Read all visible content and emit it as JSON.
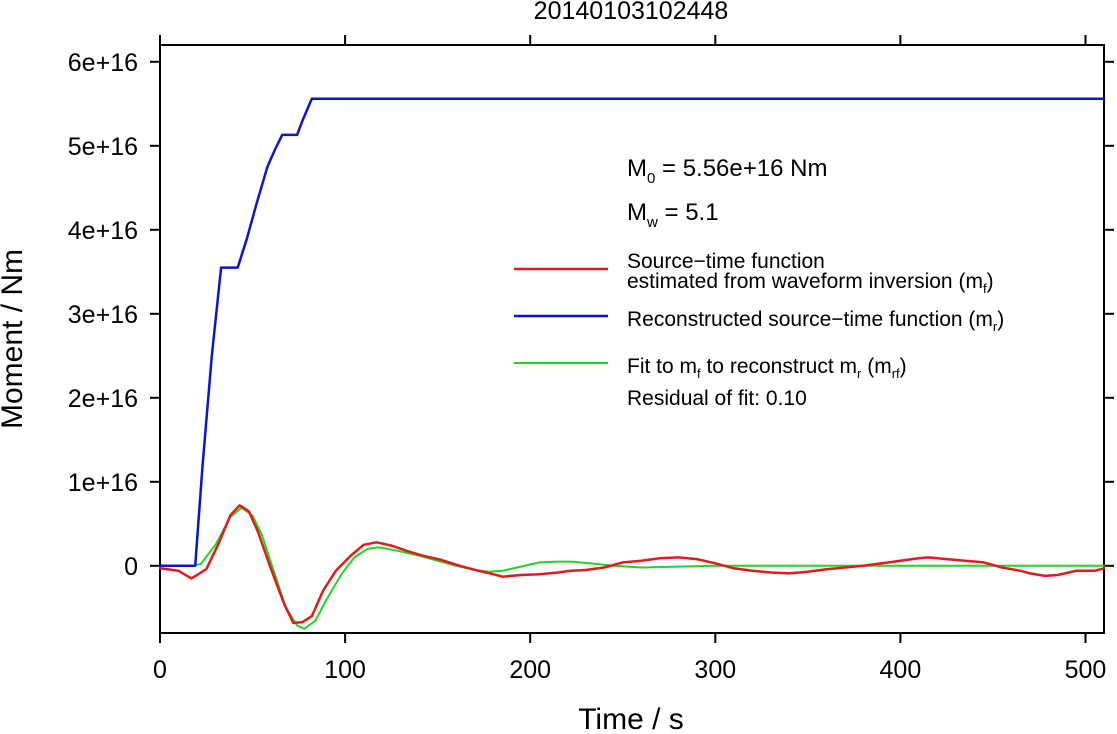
{
  "chart_data": {
    "type": "line",
    "title": "20140103102448",
    "xlabel": "Time / s",
    "ylabel": "Moment / Nm",
    "xlim": [
      0,
      510
    ],
    "ylim": [
      -8000000000000000.0,
      6.2e+16
    ],
    "x_ticks": [
      {
        "value": 0,
        "label": "0"
      },
      {
        "value": 100,
        "label": "100"
      },
      {
        "value": 200,
        "label": "200"
      },
      {
        "value": 300,
        "label": "300"
      },
      {
        "value": 400,
        "label": "400"
      },
      {
        "value": 500,
        "label": "500"
      }
    ],
    "y_ticks": [
      {
        "value": 0,
        "label": "0"
      },
      {
        "value": 1e+16,
        "label": "1e+16"
      },
      {
        "value": 2e+16,
        "label": "2e+16"
      },
      {
        "value": 3e+16,
        "label": "3e+16"
      },
      {
        "value": 4e+16,
        "label": "4e+16"
      },
      {
        "value": 5e+16,
        "label": "5e+16"
      },
      {
        "value": 6e+16,
        "label": "6e+16"
      }
    ],
    "grid": false,
    "series": [
      {
        "key": "mf",
        "color": "#e31a1c",
        "x": [
          0,
          10,
          17,
          25,
          32,
          38,
          43,
          48,
          53,
          60,
          67,
          72,
          77,
          82,
          88,
          95,
          103,
          110,
          117,
          125,
          133,
          142,
          152,
          162,
          172,
          180,
          185,
          195,
          205,
          215,
          222,
          230,
          240,
          250,
          260,
          270,
          280,
          290,
          300,
          310,
          320,
          330,
          340,
          350,
          360,
          370,
          380,
          390,
          400,
          410,
          415,
          425,
          435,
          445,
          455,
          465,
          470,
          478,
          485,
          495,
          505,
          510
        ],
        "y": [
          -300000000000000.0,
          -600000000000000.0,
          -1500000000000000.0,
          -400000000000000.0,
          2800000000000000.0,
          6000000000000000.0,
          7200000000000000.0,
          6500000000000000.0,
          4000000000000000.0,
          -400000000000000.0,
          -4500000000000000.0,
          -6800000000000000.0,
          -6700000000000000.0,
          -6000000000000000.0,
          -3000000000000000.0,
          -600000000000000.0,
          1200000000000000.0,
          2500000000000000.0,
          2800000000000000.0,
          2400000000000000.0,
          1800000000000000.0,
          1200000000000000.0,
          700000000000000.0,
          0,
          -600000000000000.0,
          -1000000000000000.0,
          -1300000000000000.0,
          -1100000000000000.0,
          -1000000000000000.0,
          -800000000000000.0,
          -600000000000000.0,
          -500000000000000.0,
          -200000000000000.0,
          400000000000000.0,
          600000000000000.0,
          900000000000000.0,
          1000000000000000.0,
          800000000000000.0,
          300000000000000.0,
          -300000000000000.0,
          -600000000000000.0,
          -800000000000000.0,
          -900000000000000.0,
          -700000000000000.0,
          -400000000000000.0,
          -200000000000000.0,
          0,
          300000000000000.0,
          600000000000000.0,
          900000000000000.0,
          1000000000000000.0,
          800000000000000.0,
          600000000000000.0,
          400000000000000.0,
          -200000000000000.0,
          -600000000000000.0,
          -900000000000000.0,
          -1200000000000000.0,
          -1100000000000000.0,
          -600000000000000.0,
          -600000000000000.0,
          -300000000000000.0
        ]
      },
      {
        "key": "mr",
        "color": "#0a14d4",
        "x": [
          0,
          19,
          23,
          28,
          33,
          36,
          39,
          42,
          47,
          52,
          58,
          62,
          66,
          70,
          74,
          77,
          82,
          510
        ],
        "y": [
          0,
          0,
          1.2e+16,
          2.5e+16,
          3.55e+16,
          3.55e+16,
          3.55e+16,
          3.55e+16,
          3.9e+16,
          4.3e+16,
          4.75e+16,
          4.95e+16,
          5.13e+16,
          5.13e+16,
          5.13e+16,
          5.3e+16,
          5.56e+16,
          5.56e+16
        ]
      },
      {
        "key": "mrf",
        "color": "#21d621",
        "x": [
          0,
          10,
          17,
          22,
          30,
          38,
          44,
          50,
          55,
          62,
          68,
          74,
          78,
          84,
          90,
          98,
          105,
          112,
          118,
          128,
          140,
          150,
          160,
          170,
          178,
          185,
          195,
          205,
          215,
          222,
          232,
          245,
          260,
          280,
          300,
          320,
          340,
          400,
          450,
          510
        ],
        "y": [
          0,
          0,
          0,
          200000000000000.0,
          2500000000000000.0,
          5800000000000000.0,
          6900000000000000.0,
          6000000000000000.0,
          3700000000000000.0,
          -1000000000000000.0,
          -5000000000000000.0,
          -7100000000000000.0,
          -7500000000000000.0,
          -6500000000000000.0,
          -4000000000000000.0,
          -1000000000000000.0,
          1000000000000000.0,
          2000000000000000.0,
          2200000000000000.0,
          1800000000000000.0,
          1200000000000000.0,
          600000000000000.0,
          0,
          -500000000000000.0,
          -700000000000000.0,
          -600000000000000.0,
          -100000000000000.0,
          400000000000000.0,
          500000000000000.0,
          500000000000000.0,
          300000000000000.0,
          0,
          -200000000000000.0,
          -100000000000000.0,
          0,
          0,
          0,
          0,
          0,
          0
        ]
      }
    ],
    "annotations": {
      "m0": {
        "label": "M",
        "sub": "0",
        "value": " = 5.56e+16 Nm"
      },
      "mw": {
        "label": "M",
        "sub": "w",
        "value": " = 5.1"
      },
      "residual": "Residual of fit: 0.10"
    },
    "legend": {
      "placement": "right",
      "entries": [
        {
          "series": "mf",
          "line1": "Source−time function",
          "line2_pre": "estimated from waveform inversion (m",
          "line2_sub": "f",
          "line2_post": ")"
        },
        {
          "series": "mr",
          "line1_pre": "Reconstructed source−time function (m",
          "line1_sub": "r",
          "line1_post": ")"
        },
        {
          "series": "mrf",
          "pre": "Fit to m",
          "sub1": "f",
          "mid": " to reconstruct m",
          "sub2": "r",
          "mid2": " (m",
          "sub3": "rf",
          "post": ")"
        }
      ]
    }
  }
}
